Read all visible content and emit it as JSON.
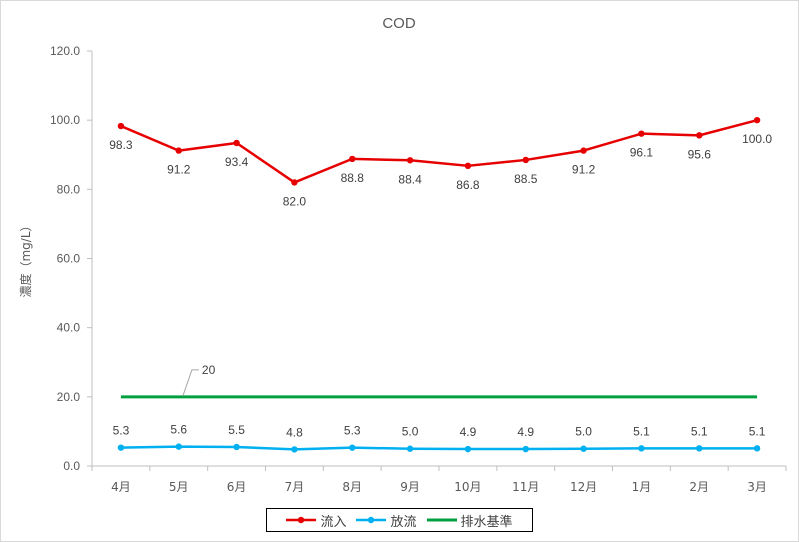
{
  "chart_data": {
    "type": "line",
    "title": "COD",
    "ylabel": "濃度（mg/L）",
    "xlabel": "",
    "categories": [
      "4月",
      "5月",
      "6月",
      "7月",
      "8月",
      "9月",
      "10月",
      "11月",
      "12月",
      "1月",
      "2月",
      "3月"
    ],
    "ylim": [
      0,
      120
    ],
    "yticks": [
      "0.0",
      "20.0",
      "40.0",
      "60.0",
      "80.0",
      "100.0",
      "120.0"
    ],
    "ytick_values": [
      0,
      20,
      40,
      60,
      80,
      100,
      120
    ],
    "grid": false,
    "legend_position": "bottom",
    "series": [
      {
        "name": "流入",
        "color": "#e60000",
        "marker": "circle",
        "labels_position": "below",
        "values": [
          98.3,
          91.2,
          93.4,
          82.0,
          88.8,
          88.4,
          86.8,
          88.5,
          91.2,
          96.1,
          95.6,
          100.0
        ],
        "data_labels": [
          "98.3",
          "91.2",
          "93.4",
          "82.0",
          "88.8",
          "88.4",
          "86.8",
          "88.5",
          "91.2",
          "96.1",
          "95.6",
          "100.0"
        ]
      },
      {
        "name": "放流",
        "color": "#00b0f0",
        "marker": "circle",
        "labels_position": "above",
        "values": [
          5.3,
          5.6,
          5.5,
          4.8,
          5.3,
          5.0,
          4.9,
          4.9,
          5.0,
          5.1,
          5.1,
          5.1
        ],
        "data_labels": [
          "5.3",
          "5.6",
          "5.5",
          "4.8",
          "5.3",
          "5.0",
          "4.9",
          "4.9",
          "5.0",
          "5.1",
          "5.1",
          "5.1"
        ]
      },
      {
        "name": "排水基準",
        "color": "#00a040",
        "marker": "none",
        "values": [
          20,
          20,
          20,
          20,
          20,
          20,
          20,
          20,
          20,
          20,
          20,
          20
        ],
        "annotation": "20"
      }
    ]
  }
}
